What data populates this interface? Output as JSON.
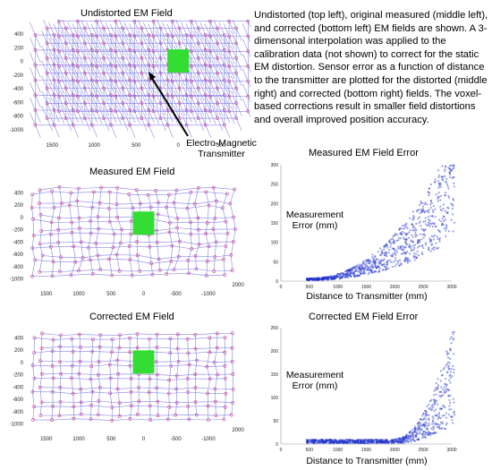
{
  "caption": "Undistorted (top left), original measured (middle left), and corrected (bottom left) EM fields are shown.  A 3-dimensonal interpolation was applied to the calibration data (not shown) to correct for the static EM distortion.  Sensor error as a function of distance to the transmitter are plotted for the distorted (middle right) and corrected (bottom right) fields.  The voxel-based corrections result in smaller field distortions and overall improved position accuracy.",
  "colors": {
    "grid_line": "#5b5bdb",
    "marker": "#d0409a",
    "transmitter": "#33dd33",
    "scatter": "#2233cc"
  },
  "chart_data": [
    {
      "type": "scatter",
      "title": "Undistorted EM Field",
      "variant": "regular-grid",
      "x_ticks": [
        "1500",
        "1000",
        "500",
        "0",
        "-500"
      ],
      "y_ticks": [
        "400",
        "200",
        "0",
        "-200",
        "-400",
        "-600",
        "-800",
        "-1000"
      ],
      "xlim": [
        1800,
        -700
      ],
      "ylim": [
        -1100,
        500
      ],
      "grid_x": [
        1700,
        1475,
        1250,
        1025,
        800,
        575,
        350,
        125,
        -100,
        -325,
        -550
      ],
      "grid_y": [
        380,
        160,
        -60,
        -280,
        -500,
        -720,
        -940
      ],
      "transmitter": {
        "x": 0,
        "y": 0
      },
      "annotation": [
        "Electro-Magnetic",
        "Transmitter"
      ]
    },
    {
      "type": "scatter",
      "title": "Measured EM Field",
      "variant": "distorted-grid",
      "x_ticks": [
        "1500",
        "1000",
        "500",
        "0",
        "-500",
        "-1000"
      ],
      "y_ticks": [
        "400",
        "200",
        "0",
        "-200",
        "-400",
        "-600",
        "-800",
        "-1000"
      ],
      "extra_tick": "2000",
      "xlim": [
        1800,
        -1400
      ],
      "ylim": [
        -1100,
        500
      ],
      "grid_x": [
        1700,
        1400,
        1100,
        800,
        500,
        200,
        -100,
        -400,
        -700,
        -1000,
        -1250
      ],
      "grid_y": [
        380,
        160,
        -60,
        -280,
        -500,
        -720,
        -940
      ],
      "transmitter": {
        "x": 0,
        "y": -100
      }
    },
    {
      "type": "scatter",
      "title": "Corrected EM Field",
      "variant": "corrected-grid",
      "x_ticks": [
        "1500",
        "1000",
        "500",
        "0",
        "-500",
        "-1000"
      ],
      "y_ticks": [
        "400",
        "200",
        "0",
        "-200",
        "-400",
        "-600",
        "-800",
        "-1000"
      ],
      "extra_tick": "2000",
      "xlim": [
        1800,
        -1400
      ],
      "ylim": [
        -1100,
        500
      ],
      "grid_x": [
        1700,
        1400,
        1100,
        800,
        500,
        200,
        -100,
        -400,
        -700,
        -1000,
        -1250
      ],
      "grid_y": [
        380,
        160,
        -60,
        -280,
        -500,
        -720,
        -940
      ],
      "transmitter": {
        "x": 0,
        "y": 0
      }
    },
    {
      "type": "scatter",
      "title": "Measured EM Field Error",
      "xlabel": "Distance to Transmitter (mm)",
      "ylabel": [
        "Measurement",
        "Error (mm)"
      ],
      "x_ticks": [
        "0",
        "500",
        "1000",
        "1500",
        "2000",
        "2500",
        "3000"
      ],
      "y_ticks": [
        "0",
        "50",
        "100",
        "150",
        "200",
        "250",
        "300"
      ],
      "xlim": [
        0,
        3000
      ],
      "ylim": [
        0,
        300
      ],
      "trend": "error rises from about 5 mm near 500 mm to about 300 mm near 3000 mm, roughly quadratic"
    },
    {
      "type": "scatter",
      "title": "Corrected EM Field Error",
      "xlabel": "Distance to Transmitter (mm)",
      "ylabel": [
        "Measurement",
        "Error (mm)"
      ],
      "x_ticks": [
        "0",
        "500",
        "1000",
        "1500",
        "2000",
        "2500",
        "3000"
      ],
      "y_ticks": [
        "0",
        "50",
        "100",
        "150",
        "200",
        "250"
      ],
      "xlim": [
        0,
        3000
      ],
      "ylim": [
        0,
        250
      ],
      "trend": "error stays below about 30 mm until 2000 mm, then rises to about 230 mm near 3000 mm"
    }
  ]
}
